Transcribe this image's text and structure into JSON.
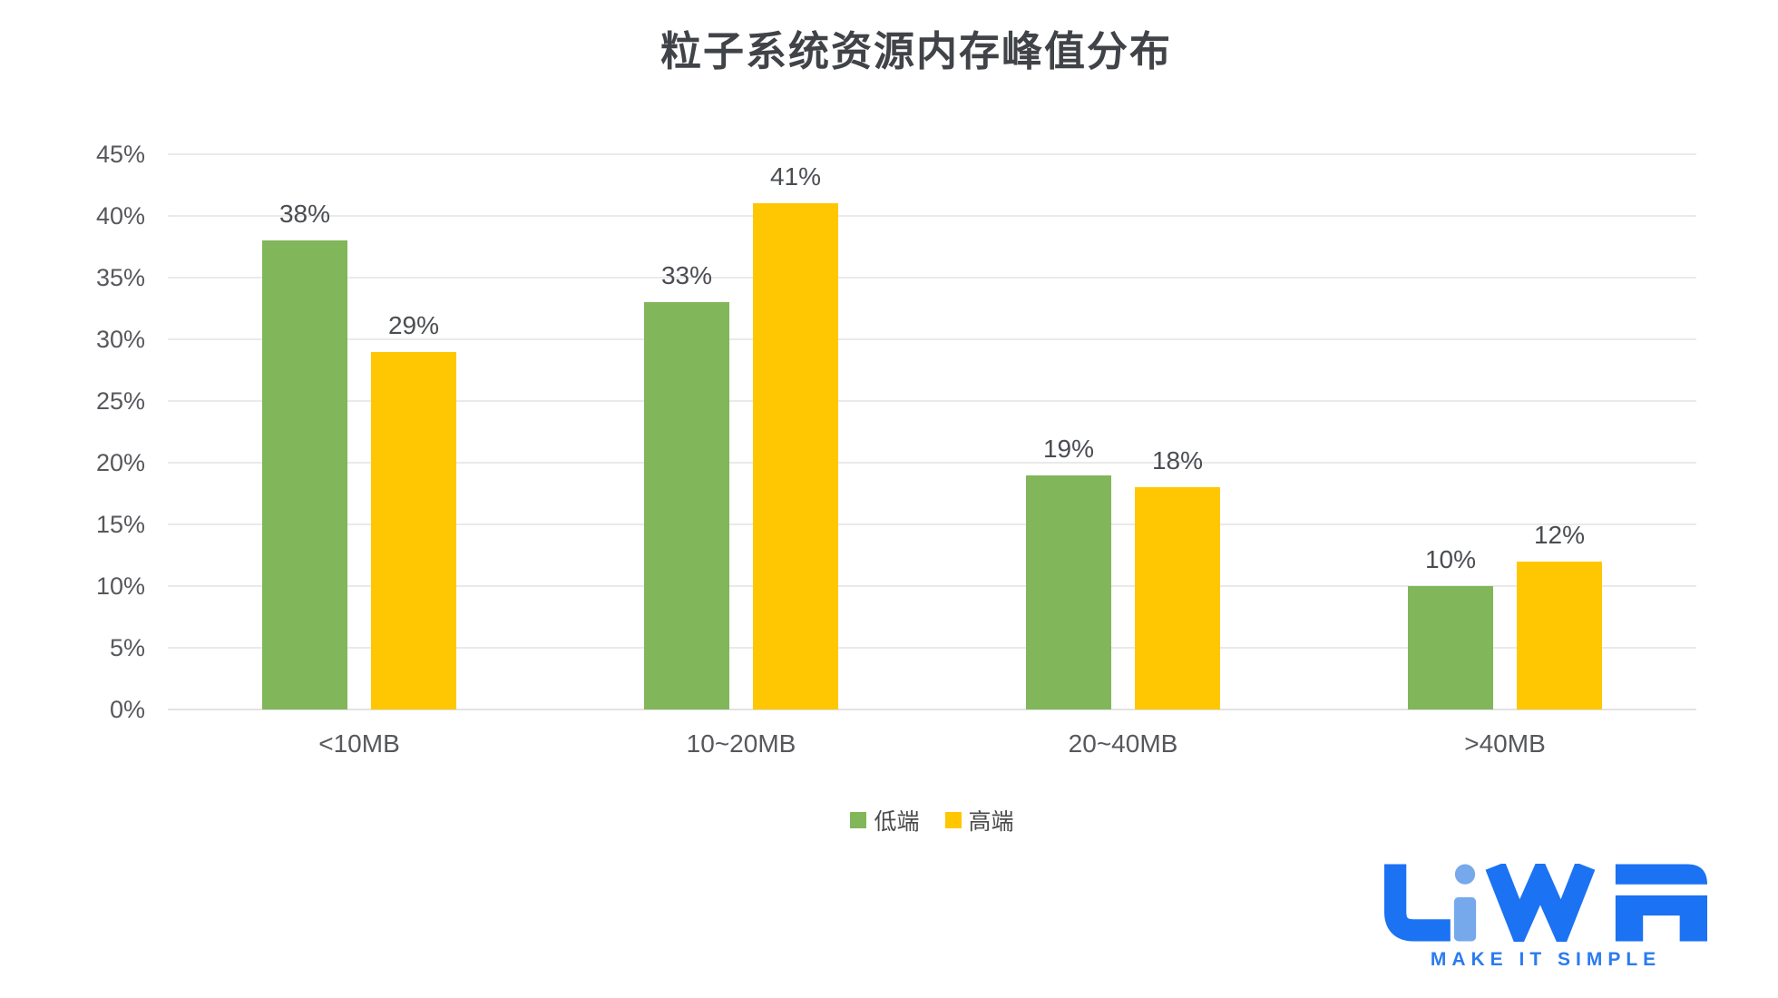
{
  "title": "粒子系统资源内存峰值分布",
  "chart_data": {
    "type": "bar",
    "title": "粒子系统资源内存峰值分布",
    "categories": [
      "<10MB",
      "10~20MB",
      "20~40MB",
      ">40MB"
    ],
    "series": [
      {
        "name": "低端",
        "color": "#82B65A",
        "values": [
          38,
          33,
          19,
          10
        ]
      },
      {
        "name": "高端",
        "color": "#FFC702",
        "values": [
          29,
          41,
          18,
          12
        ]
      }
    ],
    "value_label_suffix": "%",
    "xlabel": "",
    "ylabel": "",
    "ylim": [
      0,
      45
    ],
    "yticks": [
      "45%",
      "40%",
      "35%",
      "30%",
      "25%",
      "20%",
      "15%",
      "10%",
      "5%",
      "0%"
    ],
    "grid": true,
    "legend_position": "bottom"
  },
  "colors": {
    "grid": "#EAEAEA",
    "axis_text": "#57585C",
    "value_text": "#4A4D52",
    "title_text": "#404347"
  },
  "logo": {
    "text": "LiWA",
    "tagline": "MAKE IT SIMPLE",
    "color_primary": "#1B72F3",
    "color_light": "#76A9EB"
  }
}
